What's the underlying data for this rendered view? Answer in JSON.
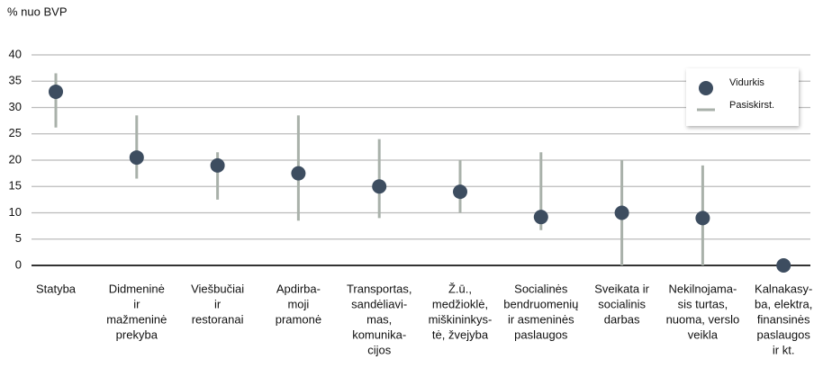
{
  "chart_data": {
    "type": "dot-range",
    "y_axis_label": "% nuo BVP",
    "categories": [
      [
        "Statyba"
      ],
      [
        "Didmeninė",
        "ir",
        "mažmeninė",
        "prekyba"
      ],
      [
        "Viešbučiai",
        "ir",
        "restoranai"
      ],
      [
        "Apdirba-",
        "moji",
        "pramonė"
      ],
      [
        "Transportas,",
        "sandėliavi-",
        "mas,",
        "komunika-",
        "cijos"
      ],
      [
        "Ž.ū.,",
        "medžioklė,",
        "miškininkys-",
        "tė, žvejyba"
      ],
      [
        "Socialinės",
        "bendruomenių",
        "ir asmeninės",
        "paslaugos"
      ],
      [
        "Sveikata ir",
        "socialinis",
        "darbas"
      ],
      [
        "Nekilnojama-",
        "sis turtas,",
        "nuoma, verslo",
        "veikla"
      ],
      [
        "Kalnakasy-",
        "ba, elektra,",
        "finansinės",
        "paslaugos",
        "ir kt."
      ]
    ],
    "series": [
      {
        "name": "Vidurkis",
        "color": "#3d4d60",
        "values": [
          33,
          20.5,
          19,
          17.5,
          15,
          14,
          9.2,
          10,
          9,
          0
        ]
      },
      {
        "name": "Pasiskirst.",
        "color": "#a9b1aa",
        "low": [
          26.2,
          16.5,
          12.5,
          8.5,
          9,
          10,
          6.7,
          0,
          0,
          0
        ],
        "high": [
          36.5,
          28.5,
          21.5,
          28.5,
          24,
          20,
          21.5,
          20,
          19,
          0
        ]
      }
    ],
    "ylim": [
      0,
      40
    ],
    "yticks": [
      0,
      5,
      10,
      15,
      20,
      25,
      30,
      35,
      40
    ],
    "grid": true,
    "legend": "upper right"
  }
}
